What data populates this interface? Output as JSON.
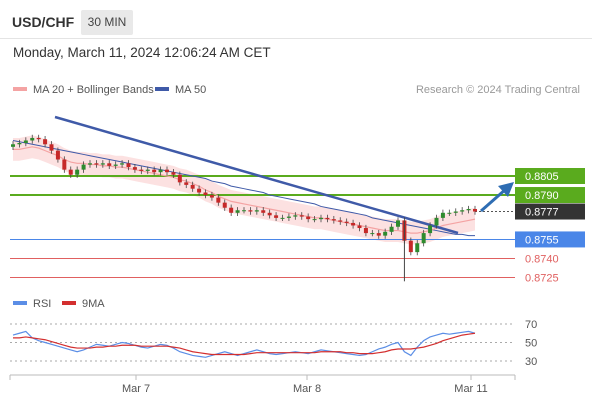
{
  "header": {
    "symbol": "USD/CHF",
    "timeframe": "30 MIN",
    "datetime": "Monday, March 11, 2024 12:06:24 AM CET"
  },
  "legend": {
    "ma20_bb": "MA 20 + Bollinger Bands",
    "ma50": "MA 50",
    "credit": "Research © 2024 Trading Central",
    "rsi": "RSI",
    "ma9": "9MA"
  },
  "colors": {
    "ma20": "#f4a3a3",
    "bollinger_fill": "#fbdcdc",
    "ma50": "#3f5aa8",
    "resistance": "#5aab1e",
    "pivot": "#4a86e8",
    "support": "#e06060",
    "candle_up": "#2e8b2e",
    "candle_down": "#c62828",
    "rsi_line": "#5b8ee6",
    "rsi_ma": "#d32f2f",
    "price_tag": "#333333",
    "arrow": "#2e6db3"
  },
  "chart_data": [
    {
      "type": "candlestick",
      "title": "USD/CHF",
      "x_ticks": [
        "Mar 7",
        "Mar 8",
        "Mar 11"
      ],
      "ylim": [
        0.8715,
        0.8855
      ],
      "levels": [
        {
          "label": "0.8805",
          "value": 0.8805,
          "kind": "resistance"
        },
        {
          "label": "0.8790",
          "value": 0.879,
          "kind": "resistance"
        },
        {
          "label": "0.8777",
          "value": 0.8777,
          "kind": "last_price"
        },
        {
          "label": "0.8755",
          "value": 0.8755,
          "kind": "pivot"
        },
        {
          "label": "0.8740",
          "value": 0.874,
          "kind": "support"
        },
        {
          "label": "0.8725",
          "value": 0.8725,
          "kind": "support"
        }
      ],
      "close_path": [
        0.883,
        0.8831,
        0.8833,
        0.8835,
        0.8834,
        0.883,
        0.8825,
        0.8818,
        0.881,
        0.8806,
        0.881,
        0.8814,
        0.8815,
        0.8814,
        0.8815,
        0.8813,
        0.8814,
        0.8815,
        0.8812,
        0.881,
        0.8809,
        0.881,
        0.8808,
        0.881,
        0.8808,
        0.8806,
        0.88,
        0.8798,
        0.8795,
        0.8792,
        0.879,
        0.8788,
        0.8784,
        0.878,
        0.8776,
        0.8778,
        0.8778,
        0.8777,
        0.8778,
        0.8776,
        0.8774,
        0.8772,
        0.8772,
        0.8773,
        0.8774,
        0.8773,
        0.8771,
        0.8771,
        0.8772,
        0.8771,
        0.877,
        0.8769,
        0.8768,
        0.8766,
        0.8764,
        0.876,
        0.876,
        0.8758,
        0.8761,
        0.8765,
        0.877,
        0.8754,
        0.8745,
        0.8752,
        0.876,
        0.8766,
        0.8772,
        0.8776,
        0.8776,
        0.8777,
        0.8778,
        0.8779,
        0.8777
      ],
      "ma20_path": [
        0.8826,
        0.8826,
        0.8827,
        0.8828,
        0.8827,
        0.8825,
        0.8823,
        0.8821,
        0.8818,
        0.8816,
        0.8815,
        0.8815,
        0.8814,
        0.8814,
        0.8813,
        0.8813,
        0.8812,
        0.8812,
        0.8811,
        0.881,
        0.8809,
        0.8808,
        0.8807,
        0.8806,
        0.8805,
        0.8804,
        0.8802,
        0.8801,
        0.8799,
        0.8797,
        0.8794,
        0.8792,
        0.8789,
        0.8787,
        0.8785,
        0.8784,
        0.8783,
        0.8782,
        0.8781,
        0.878,
        0.8779,
        0.8778,
        0.8777,
        0.8776,
        0.8775,
        0.8774,
        0.8773,
        0.8772,
        0.8772,
        0.8771,
        0.877,
        0.8769,
        0.8768,
        0.8767,
        0.8766,
        0.8765,
        0.8764,
        0.8763,
        0.8762,
        0.8762,
        0.8762,
        0.8761,
        0.876,
        0.876,
        0.8761,
        0.8762,
        0.8764,
        0.8766,
        0.8767,
        0.8768,
        0.8769,
        0.877,
        0.8771
      ],
      "ma50_path": [
        0.8833,
        0.8832,
        0.8831,
        0.883,
        0.8829,
        0.8828,
        0.8827,
        0.8826,
        0.8825,
        0.8824,
        0.8823,
        0.8822,
        0.8821,
        0.882,
        0.8819,
        0.8818,
        0.8817,
        0.8816,
        0.8815,
        0.8814,
        0.8813,
        0.8812,
        0.8811,
        0.881,
        0.8809,
        0.8808,
        0.8807,
        0.8806,
        0.8805,
        0.8804,
        0.8803,
        0.8801,
        0.88,
        0.8799,
        0.8797,
        0.8796,
        0.8795,
        0.8794,
        0.8793,
        0.8792,
        0.879,
        0.8789,
        0.8788,
        0.8787,
        0.8786,
        0.8785,
        0.8784,
        0.8783,
        0.8781,
        0.878,
        0.8779,
        0.8778,
        0.8777,
        0.8776,
        0.8775,
        0.8774,
        0.8772,
        0.8771,
        0.877,
        0.8769,
        0.8768,
        0.8767,
        0.8766,
        0.8765,
        0.8764,
        0.8763,
        0.8762,
        0.8761,
        0.876,
        0.8759,
        0.8759,
        0.8758,
        0.8758
      ]
    },
    {
      "type": "line",
      "ylim": [
        15,
        80
      ],
      "y_ticks": [
        "70",
        "50",
        "30"
      ],
      "rsi": [
        58,
        60,
        62,
        55,
        52,
        50,
        48,
        46,
        44,
        42,
        40,
        42,
        45,
        48,
        47,
        46,
        48,
        50,
        49,
        47,
        45,
        44,
        46,
        48,
        47,
        44,
        40,
        38,
        36,
        35,
        34,
        36,
        38,
        40,
        38,
        36,
        38,
        40,
        42,
        40,
        38,
        37,
        38,
        39,
        40,
        39,
        38,
        40,
        42,
        41,
        40,
        39,
        38,
        37,
        36,
        37,
        40,
        43,
        45,
        48,
        50,
        40,
        36,
        45,
        52,
        56,
        58,
        60,
        59,
        60,
        61,
        62,
        60
      ],
      "rsi_ma": [
        55,
        55,
        56,
        55,
        54,
        53,
        51,
        49,
        47,
        45,
        44,
        44,
        44,
        45,
        45,
        46,
        46,
        47,
        47,
        47,
        46,
        46,
        46,
        46,
        46,
        45,
        44,
        42,
        40,
        39,
        38,
        37,
        37,
        37,
        37,
        37,
        37,
        38,
        39,
        39,
        39,
        39,
        39,
        39,
        39,
        39,
        39,
        39,
        40,
        40,
        40,
        40,
        39,
        39,
        38,
        38,
        38,
        39,
        40,
        42,
        43,
        43,
        43,
        44,
        45,
        47,
        49,
        52,
        54,
        56,
        58,
        59,
        60
      ]
    }
  ]
}
